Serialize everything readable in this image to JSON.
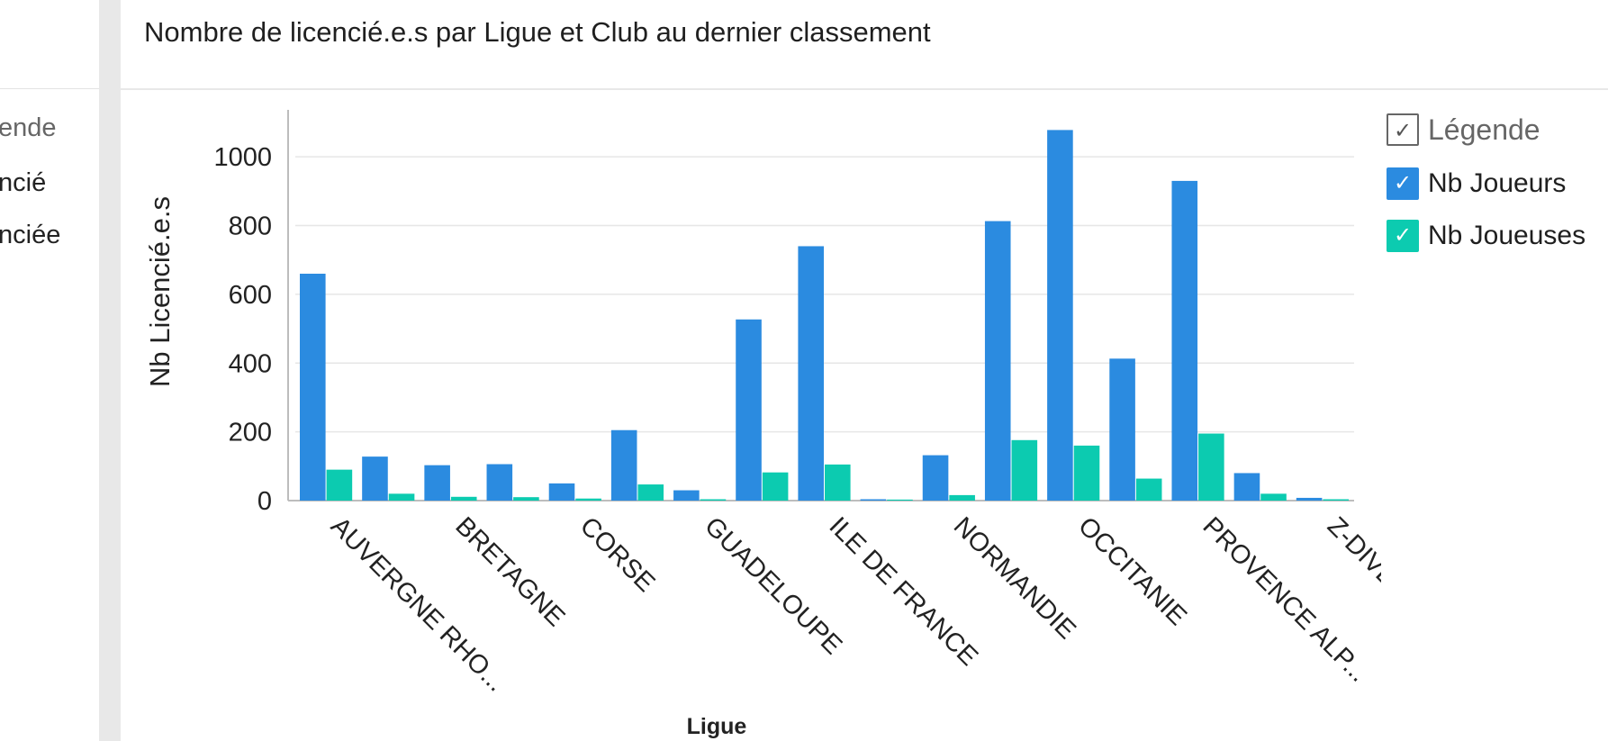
{
  "page_title": "Nombre de licencié.e.s par Ligue et Club au dernier classement",
  "left_panel_legend": {
    "title": "ende",
    "items": [
      "ncié",
      "nciée"
    ]
  },
  "legend": {
    "title": "Légende",
    "check_glyph": "✓",
    "items": [
      {
        "label": "Nb Joueurs",
        "color": "#2B8BE0"
      },
      {
        "label": "Nb Joueuses",
        "color": "#0CCBB0"
      }
    ]
  },
  "chart_data": {
    "type": "bar",
    "xlabel": "Ligue",
    "ylabel": "Nb Licencié.e.s",
    "ylim": [
      0,
      1100
    ],
    "yticks": [
      0,
      200,
      400,
      600,
      800,
      1000
    ],
    "grid": true,
    "legend_position": "top-right",
    "categories": [
      "AUVERGNE RHO...",
      "",
      "BRETAGNE",
      "",
      "CORSE",
      "",
      "GUADELOUPE",
      "",
      "ILE DE FRANCE",
      "",
      "NORMANDIE",
      "",
      "OCCITANIE",
      "",
      "PROVENCE ALP...",
      "",
      "Z-DIVERS FFT"
    ],
    "series": [
      {
        "name": "Nb Joueurs",
        "color": "#2B8BE0",
        "values": [
          660,
          128,
          103,
          106,
          50,
          205,
          30,
          527,
          740,
          0,
          132,
          813,
          1078,
          413,
          930,
          80,
          8
        ]
      },
      {
        "name": "Nb Joueuses",
        "color": "#0CCBB0",
        "values": [
          90,
          20,
          11,
          10,
          6,
          47,
          0,
          82,
          105,
          3,
          16,
          176,
          160,
          64,
          195,
          20,
          0
        ]
      }
    ]
  }
}
